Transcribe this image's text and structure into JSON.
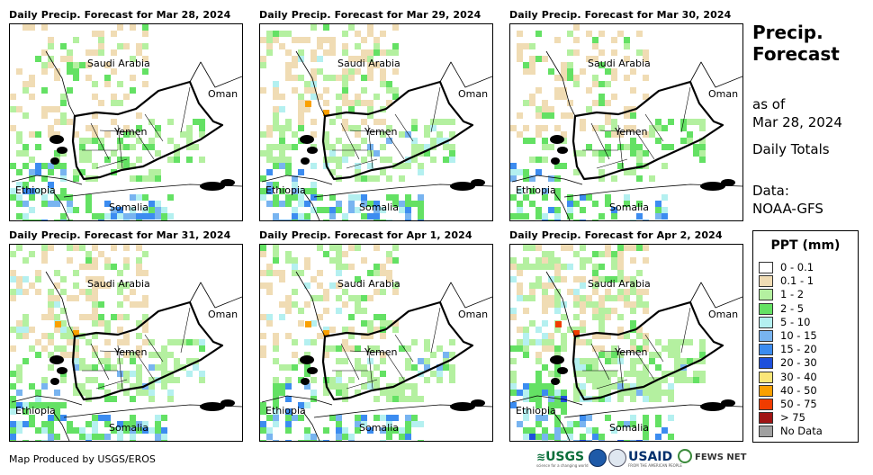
{
  "panels": [
    {
      "title": "Daily Precip. Forecast for Mar 28, 2024",
      "intensity": "low",
      "seed": 11
    },
    {
      "title": "Daily Precip. Forecast for Mar 29, 2024",
      "intensity": "moderate",
      "seed": 23
    },
    {
      "title": "Daily Precip. Forecast for Mar 30, 2024",
      "intensity": "low",
      "seed": 37
    },
    {
      "title": "Daily Precip. Forecast for Mar 31, 2024",
      "intensity": "moderate",
      "seed": 41
    },
    {
      "title": "Daily Precip. Forecast for Apr 1, 2024",
      "intensity": "moderate",
      "seed": 53
    },
    {
      "title": "Daily Precip. Forecast for Apr 2, 2024",
      "intensity": "high",
      "seed": 67
    }
  ],
  "map_labels": {
    "saudi_arabia": "Saudi Arabia",
    "oman": "Oman",
    "yemen": "Yemen",
    "ethiopia": "Ethiopia",
    "somalia": "Somalia"
  },
  "sidebar": {
    "title_line1": "Precip.",
    "title_line2": "Forecast",
    "as_of": "as of",
    "date": "Mar 28, 2024",
    "totals": "Daily Totals",
    "data_label": "Data:",
    "data_source": "NOAA-GFS"
  },
  "legend": {
    "title": "PPT (mm)",
    "items": [
      {
        "label": "0 - 0.1",
        "color": "#ffffff"
      },
      {
        "label": "0.1 - 1",
        "color": "#f0dcb4"
      },
      {
        "label": "1 - 2",
        "color": "#b4f0a0"
      },
      {
        "label": "2 - 5",
        "color": "#64e164"
      },
      {
        "label": "5 - 10",
        "color": "#b4f0f0"
      },
      {
        "label": "10 - 15",
        "color": "#78b4f0"
      },
      {
        "label": "15 - 20",
        "color": "#3c8cf0"
      },
      {
        "label": "20 - 30",
        "color": "#1e50dc"
      },
      {
        "label": "30 - 40",
        "color": "#fae678"
      },
      {
        "label": "40 - 50",
        "color": "#faa000"
      },
      {
        "label": "50 - 75",
        "color": "#f03c00"
      },
      {
        "label": "> 75",
        "color": "#a01414"
      },
      {
        "label": "No Data",
        "color": "#a0a0a0"
      }
    ]
  },
  "footer": {
    "credit": "Map Produced by USGS/EROS",
    "logo_usgs": "USGS",
    "logo_usgs_tagline": "science for a changing world",
    "logo_usaid": "USAID",
    "logo_usaid_tagline": "FROM THE AMERICAN PEOPLE",
    "logo_fews": "FEWS NET"
  }
}
